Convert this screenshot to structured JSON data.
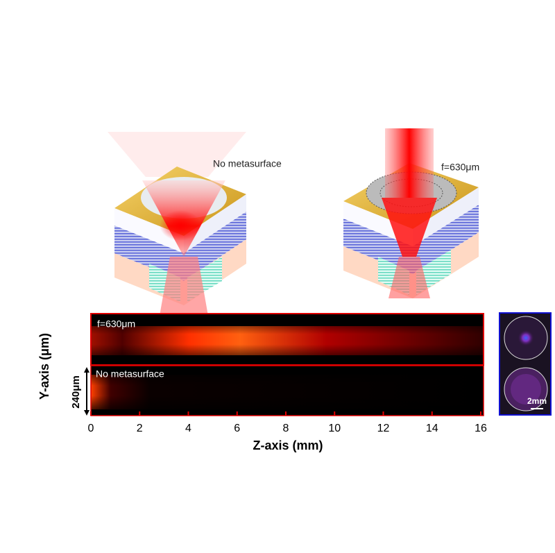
{
  "diagrams": [
    {
      "label": "No metasurface"
    },
    {
      "label": "f=630μm"
    }
  ],
  "field_map": {
    "x_label": "Z-axis (mm)",
    "y_label": "Y-axis (μm)",
    "xlim": [
      0,
      16
    ],
    "xticks": [
      0,
      2,
      4,
      6,
      8,
      10,
      12,
      14,
      16
    ],
    "panels": [
      {
        "label": "f=630μm"
      },
      {
        "label": "No metasurface"
      }
    ],
    "scale_label": "240μm"
  },
  "inset": {
    "scale_label": "2mm"
  }
}
